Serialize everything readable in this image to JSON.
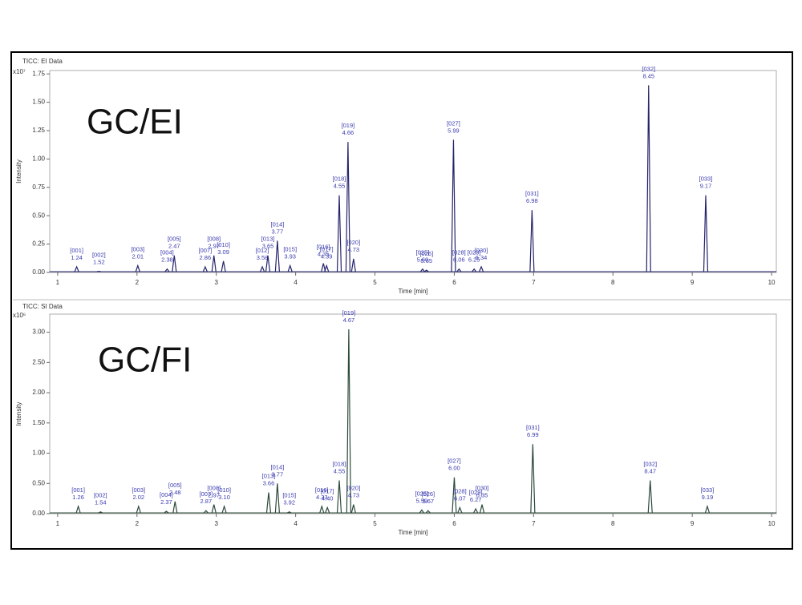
{
  "chart_data": [
    {
      "type": "line",
      "title": "TICC: EI Data",
      "annotation": "GC/EI",
      "y_label": "Intensity",
      "x_label": "Time [min]",
      "y_scale_label": "x10⁷",
      "color": "#24246b",
      "label_color": "#3b3bb0",
      "xlim": [
        0.9,
        10.06
      ],
      "ylim": [
        0,
        1.78
      ],
      "xticks": [
        1,
        2,
        3,
        4,
        5,
        6,
        7,
        8,
        9,
        10
      ],
      "yticks": [
        {
          "value": 0,
          "label": "0.00"
        },
        {
          "value": 0.25,
          "label": "0.25"
        },
        {
          "value": 0.5,
          "label": "0.50"
        },
        {
          "value": 0.75,
          "label": "0.75"
        },
        {
          "value": 1,
          "label": "1.00"
        },
        {
          "value": 1.25,
          "label": "1.25"
        },
        {
          "value": 1.5,
          "label": "1.50"
        },
        {
          "value": 1.75,
          "label": "1.75"
        }
      ],
      "peak_ids": [
        "[001]",
        "[002]",
        "[003]",
        "[004]",
        "[005]",
        "[007]",
        "[008]",
        "[010]",
        "[012]",
        "[013]",
        "[014]",
        "[015]",
        "[016]",
        "[017]",
        "[018]",
        "[019]",
        "[020]",
        "[025]",
        "[026]",
        "[027]",
        "[028]",
        "[029]",
        "[030]",
        "[031]",
        "[032]",
        "[033]"
      ],
      "x": [
        1.24,
        1.52,
        2.01,
        2.38,
        2.47,
        2.86,
        2.97,
        3.09,
        3.58,
        3.65,
        3.77,
        3.93,
        4.35,
        4.39,
        4.55,
        4.66,
        4.73,
        5.6,
        5.65,
        5.99,
        6.06,
        6.25,
        6.34,
        6.98,
        8.45,
        9.17
      ],
      "x_labels": [
        "1.24",
        "1.52",
        "2.01",
        "2.38",
        "2.47",
        "2.86",
        "2.97",
        "3.09",
        "3.58",
        "3.65",
        "3.77",
        "3.93",
        "4.35",
        "4.39",
        "4.55",
        "4.66",
        "4.73",
        "5.60",
        "5.65",
        "5.99",
        "6.06",
        "6.25",
        "6.34",
        "6.98",
        "8.45",
        "9.17"
      ],
      "values": [
        0.05,
        0.01,
        0.06,
        0.03,
        0.15,
        0.05,
        0.15,
        0.1,
        0.05,
        0.15,
        0.28,
        0.06,
        0.08,
        0.06,
        0.68,
        1.15,
        0.12,
        0.03,
        0.02,
        1.17,
        0.03,
        0.03,
        0.05,
        0.55,
        1.65,
        0.68
      ]
    },
    {
      "type": "line",
      "title": "TICC: SI Data",
      "annotation": "GC/FI",
      "y_label": "Intensity",
      "x_label": "Time [min]",
      "y_scale_label": "x10⁶",
      "color": "#2c4a3a",
      "label_color": "#3b3bb0",
      "xlim": [
        0.9,
        10.06
      ],
      "ylim": [
        0,
        3.3
      ],
      "xticks": [
        1,
        2,
        3,
        4,
        5,
        6,
        7,
        8,
        9,
        10
      ],
      "yticks": [
        {
          "value": 0,
          "label": "0.00"
        },
        {
          "value": 0.5,
          "label": "0.50"
        },
        {
          "value": 1,
          "label": "1.00"
        },
        {
          "value": 1.5,
          "label": "1.50"
        },
        {
          "value": 2,
          "label": "2.00"
        },
        {
          "value": 2.5,
          "label": "2.50"
        },
        {
          "value": 3,
          "label": "3.00"
        }
      ],
      "peak_ids": [
        "[001]",
        "[002]",
        "[003]",
        "[004]",
        "[005]",
        "[007]",
        "[008]",
        "[010]",
        "[013]",
        "[014]",
        "[015]",
        "[016]",
        "[017]",
        "[018]",
        "[019]",
        "[020]",
        "[025]",
        "[026]",
        "[027]",
        "[028]",
        "[029]",
        "[030]",
        "[031]",
        "[032]",
        "[033]"
      ],
      "x": [
        1.26,
        1.54,
        2.02,
        2.37,
        2.48,
        2.87,
        2.97,
        3.1,
        3.66,
        3.77,
        3.92,
        4.33,
        4.4,
        4.55,
        4.67,
        4.73,
        5.59,
        5.67,
        6.0,
        6.07,
        6.27,
        6.35,
        6.99,
        8.47,
        9.19
      ],
      "x_labels": [
        "1.26",
        "1.54",
        "2.02",
        "2.37",
        "2.48",
        "2.87",
        "2.97",
        "3.10",
        "3.66",
        "3.77",
        "3.92",
        "4.33",
        "4.40",
        "4.55",
        "4.67",
        "4.73",
        "5.59",
        "5.67",
        "6.00",
        "6.07",
        "6.27",
        "6.35",
        "6.99",
        "8.47",
        "9.19"
      ],
      "values": [
        0.12,
        0.03,
        0.12,
        0.04,
        0.2,
        0.05,
        0.15,
        0.12,
        0.35,
        0.5,
        0.03,
        0.12,
        0.1,
        0.55,
        3.05,
        0.15,
        0.06,
        0.05,
        0.6,
        0.1,
        0.08,
        0.15,
        1.15,
        0.55,
        0.12
      ]
    }
  ]
}
